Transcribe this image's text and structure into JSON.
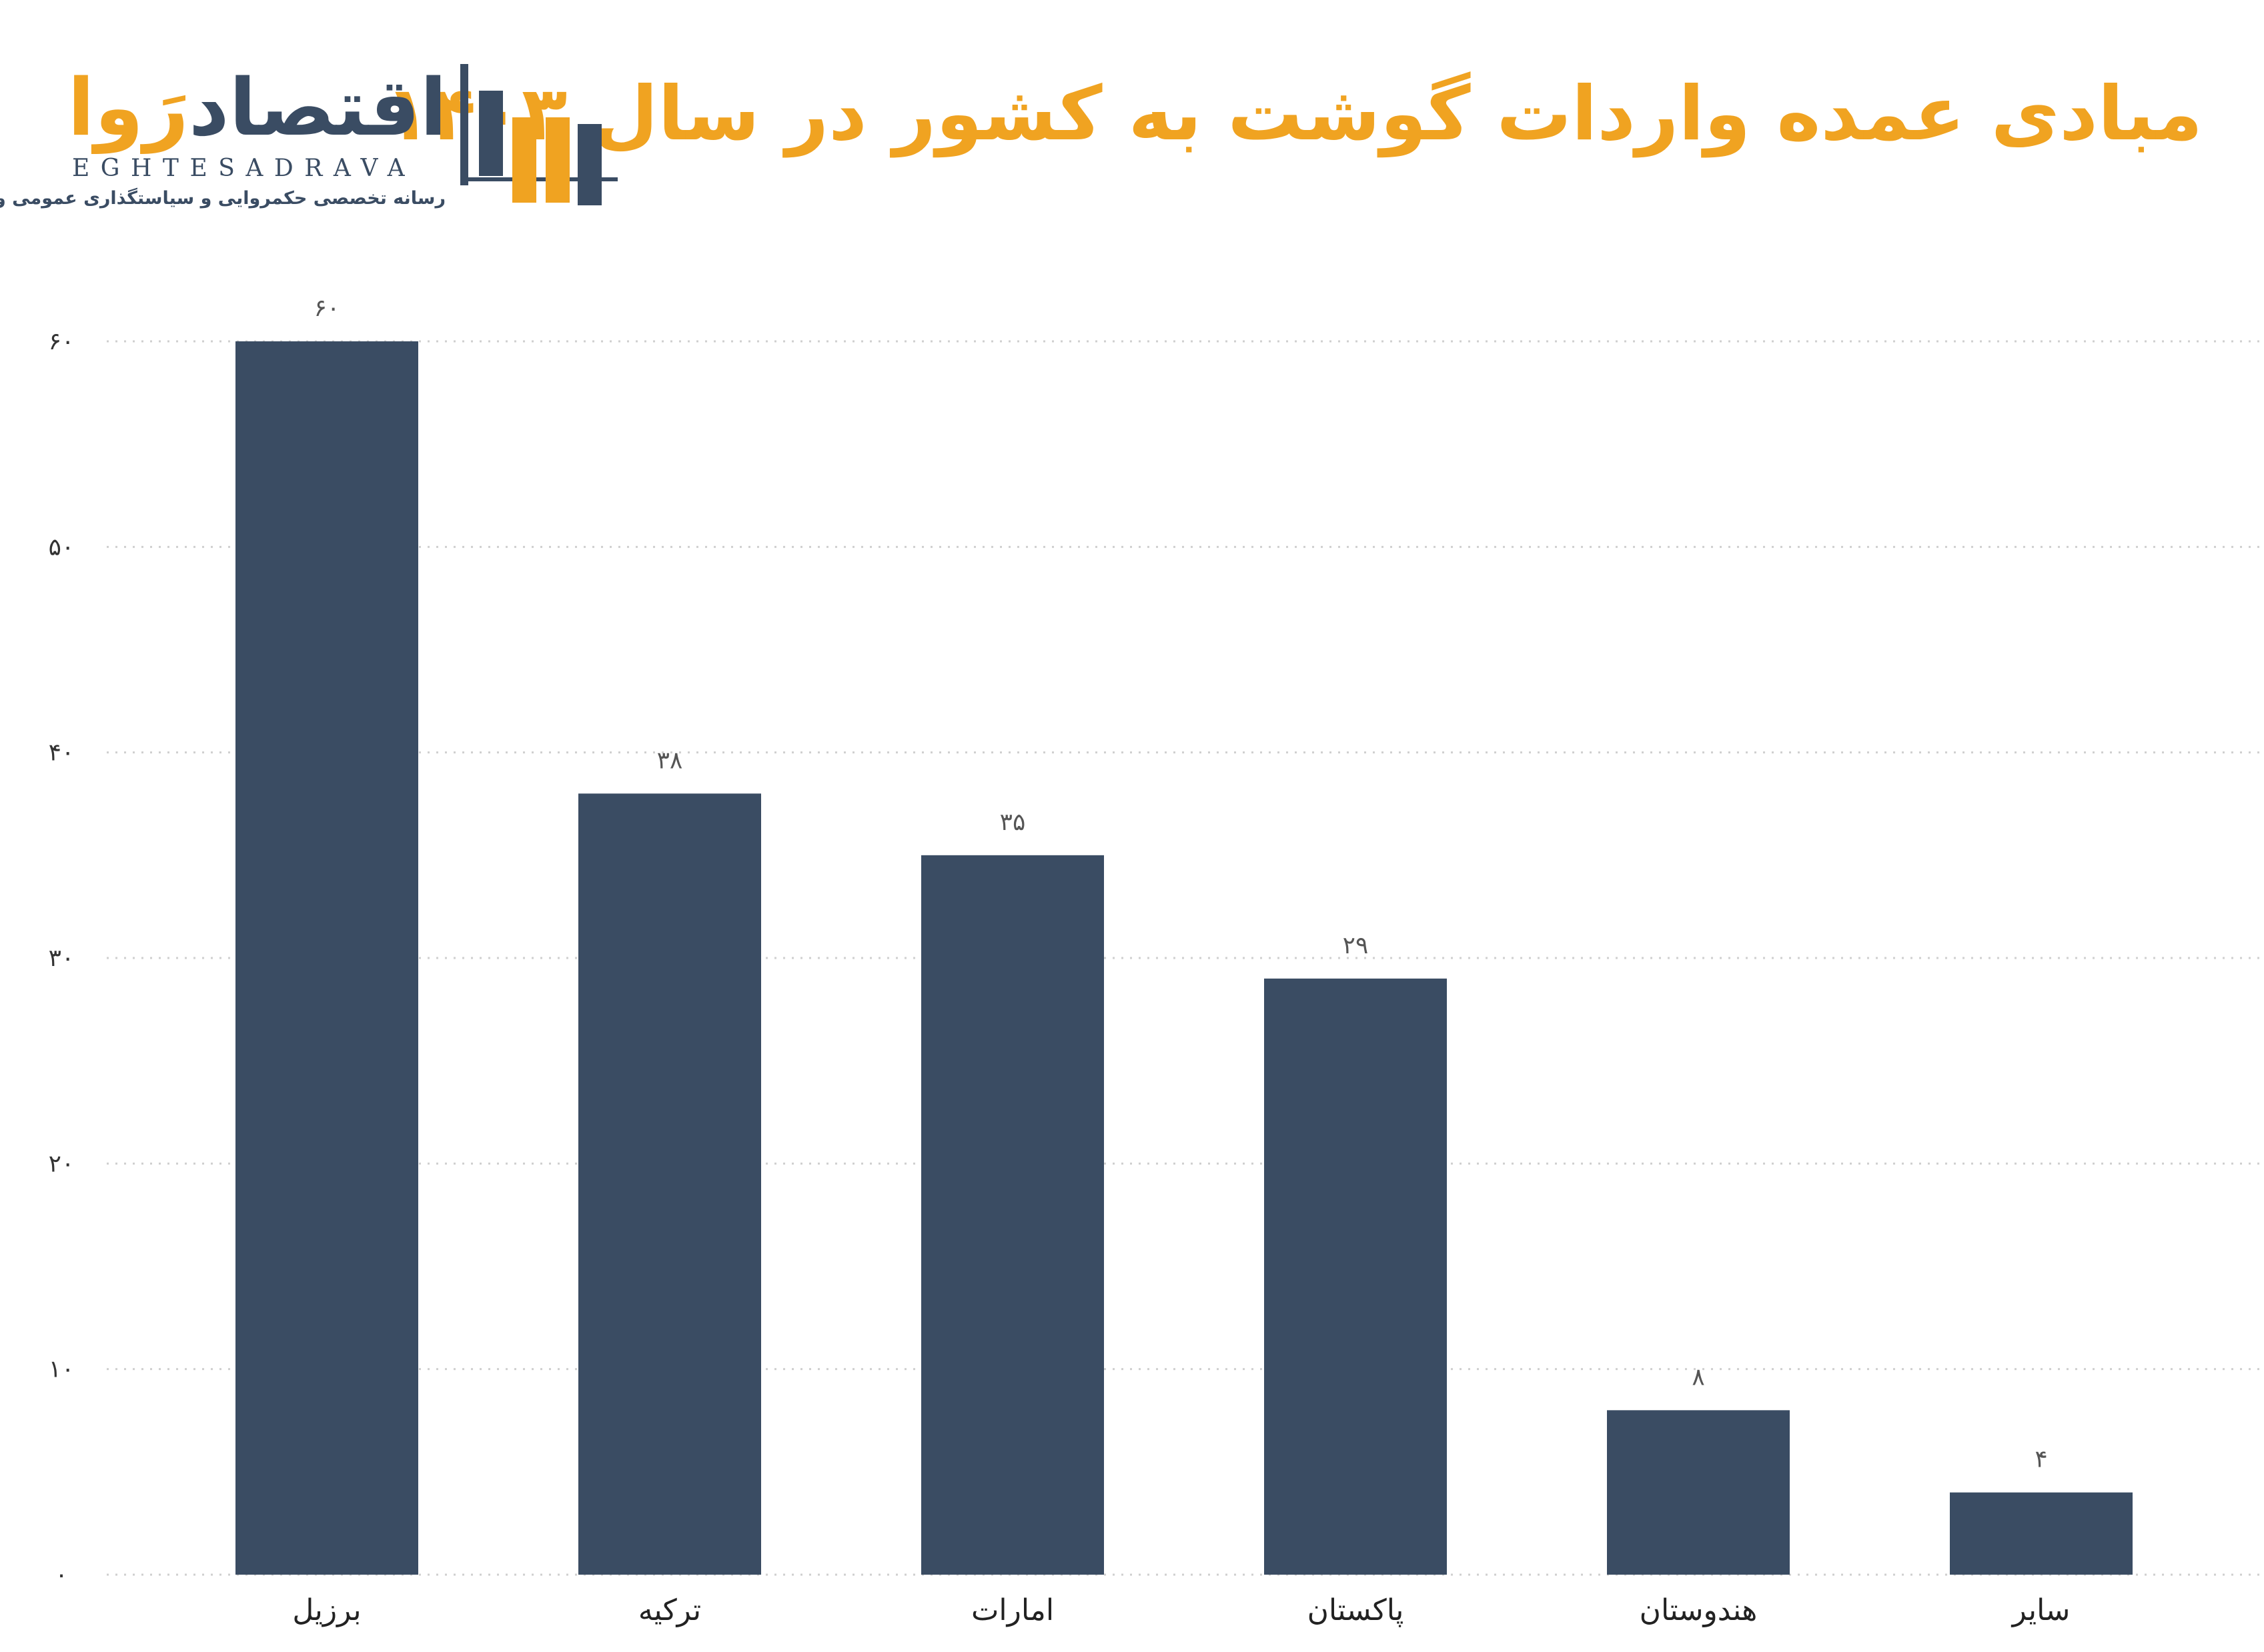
{
  "header": {
    "title": "مبادی عمده واردات گوشت به کشور در سال ۱۴۰۳"
  },
  "logo": {
    "word_part1": "اقتصاد",
    "word_part2": "رَوا",
    "latin": "EGHTESADRAVA",
    "tagline": "رسانه تخصصی حکمروایی و سیاستگذاری عمومی و اقتصادی"
  },
  "colors": {
    "bar": "#3a4c63",
    "accent": "#f0a321",
    "grid": "#cfcfcf",
    "label": "#555555"
  },
  "chart_data": {
    "type": "bar",
    "title": "",
    "xlabel": "",
    "ylabel": "",
    "ylim": [
      0,
      60
    ],
    "grid": true,
    "categories": [
      "برزیل",
      "ترکیه",
      "امارات",
      "پاکستان",
      "هندوستان",
      "سایر"
    ],
    "values": [
      60,
      38,
      35,
      29,
      8,
      4
    ],
    "value_labels": [
      "۶۰",
      "۳۸",
      "۳۵",
      "۲۹",
      "۸",
      "۴"
    ],
    "y_ticks": [
      0,
      10,
      20,
      30,
      40,
      50,
      60
    ],
    "y_tick_labels": [
      "۰",
      "۱۰",
      "۲۰",
      "۳۰",
      "۴۰",
      "۵۰",
      "۶۰"
    ]
  }
}
